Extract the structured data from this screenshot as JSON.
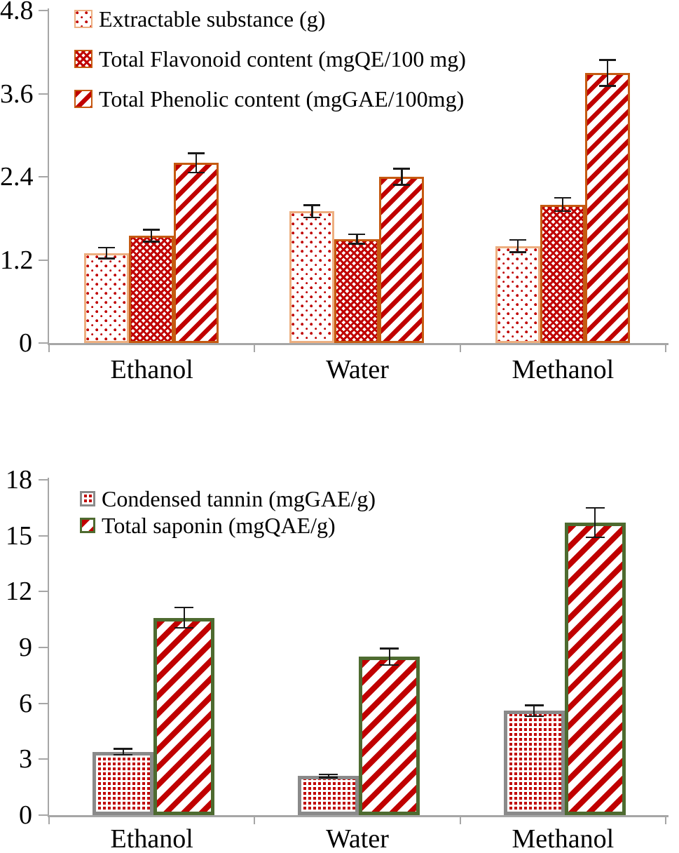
{
  "figure": {
    "background": "#ffffff",
    "x_axis_categories": [
      "Ethanol",
      "Water",
      "Methanol"
    ]
  },
  "colors": {
    "pattern_red": "#C00000",
    "axis_gray": "#A6A6A6",
    "error_bar_black": "#1a1a1a",
    "text_black": "#000000",
    "extractable_border": "#EDAF80",
    "flavonoid_border": "#C55A11",
    "phenolic_border": "#C55A11",
    "tannin_border": "#8A8A8A",
    "saponin_border": "#4E6B30"
  },
  "chart_data": [
    {
      "type": "bar",
      "title": "",
      "xlabel": "",
      "ylabel": "",
      "categories": [
        "Ethanol",
        "Water",
        "Methanol"
      ],
      "series": [
        {
          "name": "Extractable substance (g)",
          "values": [
            1.3,
            1.9,
            1.4
          ],
          "errors": [
            0.08,
            0.09,
            0.09
          ],
          "pattern": "dots-sparse",
          "border_color": "#EDAF80"
        },
        {
          "name": "Total Flavonoid content (mgQE/100 mg)",
          "values": [
            1.55,
            1.5,
            2.0
          ],
          "errors": [
            0.09,
            0.07,
            0.1
          ],
          "pattern": "crosshatch",
          "border_color": "#C55A11"
        },
        {
          "name": "Total Phenolic content (mgGAE/100mg)",
          "values": [
            2.6,
            2.4,
            3.9
          ],
          "errors": [
            0.14,
            0.12,
            0.19
          ],
          "pattern": "diagonal-stripes",
          "border_color": "#C55A11"
        }
      ],
      "ylim": [
        0,
        4.8
      ],
      "yticks": [
        0,
        1.2,
        2.4,
        3.6,
        4.8
      ],
      "grid": false,
      "error_bars": true,
      "legend_position": "top-left-inside"
    },
    {
      "type": "bar",
      "title": "",
      "xlabel": "",
      "ylabel": "",
      "categories": [
        "Ethanol",
        "Water",
        "Methanol"
      ],
      "series": [
        {
          "name": "Condensed tannin (mgGAE/g)",
          "values": [
            3.4,
            2.1,
            5.6
          ],
          "errors": [
            0.17,
            0.1,
            0.3
          ],
          "pattern": "dots-dense-grid",
          "border_color": "#8A8A8A"
        },
        {
          "name": "Total saponin (mgQAE/g)",
          "values": [
            10.6,
            8.5,
            15.7
          ],
          "errors": [
            0.55,
            0.45,
            0.8
          ],
          "pattern": "diagonal-stripes-wide",
          "border_color": "#4E6B30"
        }
      ],
      "ylim": [
        0,
        18
      ],
      "yticks": [
        0,
        3,
        6,
        9,
        12,
        15,
        18
      ],
      "grid": false,
      "error_bars": true,
      "legend_position": "top-left-inside"
    }
  ]
}
